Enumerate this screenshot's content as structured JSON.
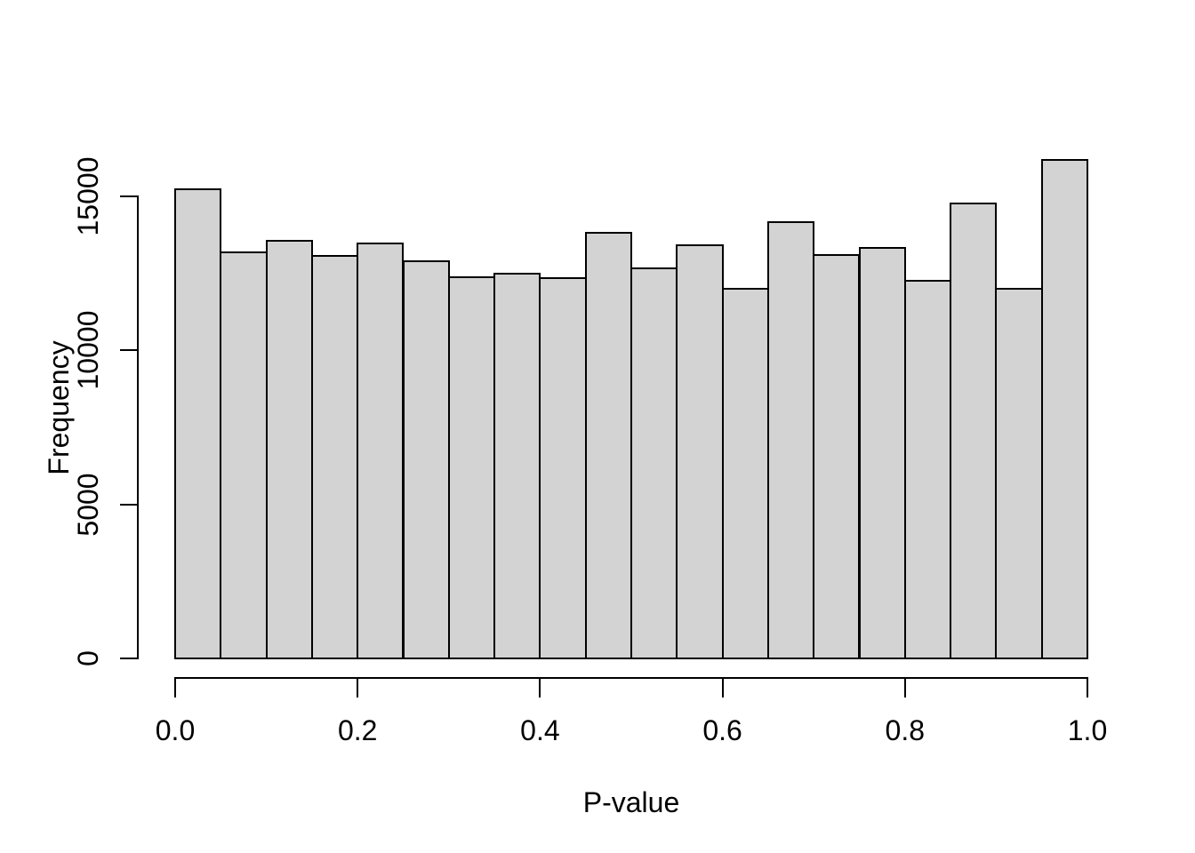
{
  "chart_data": {
    "type": "bar",
    "subtype": "histogram",
    "title": "",
    "xlabel": "P-value",
    "ylabel": "Frequency",
    "bin_width": 0.05,
    "bin_edges": [
      0.0,
      0.05,
      0.1,
      0.15,
      0.2,
      0.25,
      0.3,
      0.35,
      0.4,
      0.45,
      0.5,
      0.55,
      0.6,
      0.65,
      0.7,
      0.75,
      0.8,
      0.85,
      0.9,
      0.95,
      1.0
    ],
    "categories": [
      "0.00-0.05",
      "0.05-0.10",
      "0.10-0.15",
      "0.15-0.20",
      "0.20-0.25",
      "0.25-0.30",
      "0.30-0.35",
      "0.35-0.40",
      "0.40-0.45",
      "0.45-0.50",
      "0.50-0.55",
      "0.55-0.60",
      "0.60-0.65",
      "0.65-0.70",
      "0.70-0.75",
      "0.75-0.80",
      "0.80-0.85",
      "0.85-0.90",
      "0.90-0.95",
      "0.95-1.00"
    ],
    "values": [
      15240,
      13180,
      13560,
      13070,
      13480,
      12890,
      12370,
      12490,
      12350,
      13810,
      12680,
      13430,
      12010,
      14170,
      13100,
      13330,
      12270,
      14760,
      12000,
      16200
    ],
    "x_ticks": [
      "0.0",
      "0.2",
      "0.4",
      "0.6",
      "0.8",
      "1.0"
    ],
    "x_tick_values": [
      0.0,
      0.2,
      0.4,
      0.6,
      0.8,
      1.0
    ],
    "y_ticks": [
      "0",
      "5000",
      "10000",
      "15000"
    ],
    "y_tick_values": [
      0,
      5000,
      10000,
      15000
    ],
    "xlim": [
      0.0,
      1.0
    ],
    "ylim": [
      0,
      16500
    ],
    "grid": false,
    "legend": false,
    "colors": {
      "bar_fill": "#d3d3d3",
      "bar_border": "#000000",
      "axis": "#000000",
      "text": "#000000",
      "background": "#ffffff"
    }
  }
}
